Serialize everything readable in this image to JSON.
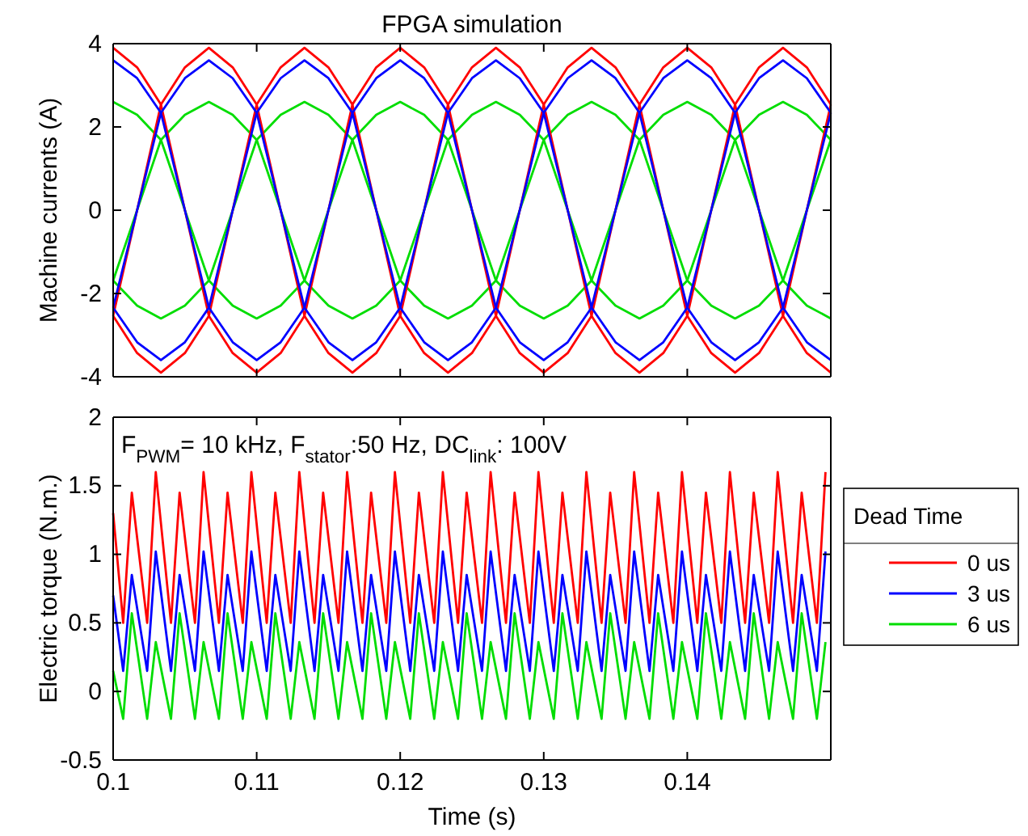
{
  "chart_data": [
    {
      "type": "line",
      "title": "FPGA simulation",
      "ylabel": "Machine currents (A)",
      "xlim": [
        0.1,
        0.15
      ],
      "xticks": [
        0.1,
        0.11,
        0.12,
        0.13,
        0.14
      ],
      "ylim": [
        -4,
        4
      ],
      "yticks": [
        -4,
        -2,
        0,
        2,
        4
      ],
      "tick_labels": "y",
      "x": [
        0.1,
        0.10167,
        0.10333,
        0.105,
        0.10667,
        0.10833,
        0.11,
        0.11167,
        0.11333,
        0.115,
        0.11667,
        0.11833,
        0.12,
        0.12167,
        0.12333,
        0.125,
        0.12667,
        0.12833,
        0.13,
        0.13167,
        0.13333,
        0.135,
        0.13667,
        0.13833,
        0.14,
        0.14167,
        0.14333,
        0.145,
        0.14667,
        0.14833,
        0.15
      ],
      "series": [
        {
          "color": "#00dd00",
          "values": [
            2.6,
            2.29,
            1.69,
            0,
            -1.69,
            -2.29,
            -2.6,
            -2.29,
            -1.69,
            0,
            1.69,
            2.29,
            2.6,
            2.29,
            1.69,
            0,
            -1.69,
            -2.29,
            -2.6,
            -2.29,
            -1.69,
            0,
            1.69,
            2.29,
            2.6,
            2.29,
            1.69,
            0,
            -1.69,
            -2.29,
            -2.6
          ]
        },
        {
          "color": "#00dd00",
          "values": [
            -1.69,
            0,
            1.69,
            2.29,
            2.6,
            2.29,
            1.69,
            0,
            -1.69,
            -2.29,
            -2.6,
            -2.29,
            -1.69,
            0,
            1.69,
            2.29,
            2.6,
            2.29,
            1.69,
            0,
            -1.69,
            -2.29,
            -2.6,
            -2.29,
            -1.69,
            0,
            1.69,
            2.29,
            2.6,
            2.29,
            1.69
          ]
        },
        {
          "color": "#00dd00",
          "values": [
            -1.69,
            -2.29,
            -2.6,
            -2.29,
            -1.69,
            0,
            1.69,
            2.29,
            2.6,
            2.29,
            1.69,
            0,
            -1.69,
            -2.29,
            -2.6,
            -2.29,
            -1.69,
            0,
            1.69,
            2.29,
            2.6,
            2.29,
            1.69,
            0,
            -1.69,
            -2.29,
            -2.6,
            -2.29,
            -1.69,
            0,
            1.69
          ]
        },
        {
          "color": "#ff0000",
          "values": [
            3.9,
            3.43,
            2.54,
            0,
            -2.54,
            -3.43,
            -3.9,
            -3.43,
            -2.54,
            0,
            2.54,
            3.43,
            3.9,
            3.43,
            2.54,
            0,
            -2.54,
            -3.43,
            -3.9,
            -3.43,
            -2.54,
            0,
            2.54,
            3.43,
            3.9,
            3.43,
            2.54,
            0,
            -2.54,
            -3.43,
            -3.9
          ]
        },
        {
          "color": "#ff0000",
          "values": [
            -2.54,
            0,
            2.54,
            3.43,
            3.9,
            3.43,
            2.54,
            0,
            -2.54,
            -3.43,
            -3.9,
            -3.43,
            -2.54,
            0,
            2.54,
            3.43,
            3.9,
            3.43,
            2.54,
            0,
            -2.54,
            -3.43,
            -3.9,
            -3.43,
            -2.54,
            0,
            2.54,
            3.43,
            3.9,
            3.43,
            2.54
          ]
        },
        {
          "color": "#ff0000",
          "values": [
            -2.54,
            -3.43,
            -3.9,
            -3.43,
            -2.54,
            0,
            2.54,
            3.43,
            3.9,
            3.43,
            2.54,
            0,
            -2.54,
            -3.43,
            -3.9,
            -3.43,
            -2.54,
            0,
            2.54,
            3.43,
            3.9,
            3.43,
            2.54,
            0,
            -2.54,
            -3.43,
            -3.9,
            -3.43,
            -2.54,
            0,
            2.54
          ]
        },
        {
          "color": "#0000ff",
          "values": [
            3.6,
            3.17,
            2.34,
            0,
            -2.34,
            -3.17,
            -3.6,
            -3.17,
            -2.34,
            0,
            2.34,
            3.17,
            3.6,
            3.17,
            2.34,
            0,
            -2.34,
            -3.17,
            -3.6,
            -3.17,
            -2.34,
            0,
            2.34,
            3.17,
            3.6,
            3.17,
            2.34,
            0,
            -2.34,
            -3.17,
            -3.6
          ]
        },
        {
          "color": "#0000ff",
          "values": [
            -2.34,
            0,
            2.34,
            3.17,
            3.6,
            3.17,
            2.34,
            0,
            -2.34,
            -3.17,
            -3.6,
            -3.17,
            -2.34,
            0,
            2.34,
            3.17,
            3.6,
            3.17,
            2.34,
            0,
            -2.34,
            -3.17,
            -3.6,
            -3.17,
            -2.34,
            0,
            2.34,
            3.17,
            3.6,
            3.17,
            2.34
          ]
        },
        {
          "color": "#0000ff",
          "values": [
            -2.34,
            -3.17,
            -3.6,
            -3.17,
            -2.34,
            0,
            2.34,
            3.17,
            3.6,
            3.17,
            2.34,
            0,
            -2.34,
            -3.17,
            -3.6,
            -3.17,
            -2.34,
            0,
            2.34,
            3.17,
            3.6,
            3.17,
            2.34,
            0,
            -2.34,
            -3.17,
            -3.6,
            -3.17,
            -2.34,
            0,
            2.34
          ]
        }
      ]
    },
    {
      "type": "line",
      "xlabel": "Time (s)",
      "ylabel": "Electric torque (N.m.)",
      "xlim": [
        0.1,
        0.15
      ],
      "xticks": [
        0.1,
        0.11,
        0.12,
        0.13,
        0.14
      ],
      "ylim": [
        -0.5,
        2
      ],
      "yticks": [
        -0.5,
        0,
        0.5,
        1,
        1.5,
        2
      ],
      "legend": "right",
      "legend_title": "Dead Time",
      "annotations": [
        "F$_{PWM}$= 10 kHz, F$_{stator}$:50 Hz, DC$_{link}$: 100V"
      ],
      "x": [
        0.1,
        0.1007,
        0.1013,
        0.10237,
        0.10297,
        0.10403,
        0.10463,
        0.1057,
        0.1063,
        0.10737,
        0.10797,
        0.10903,
        0.10963,
        0.1107,
        0.1113,
        0.11237,
        0.11297,
        0.11403,
        0.11463,
        0.1157,
        0.1163,
        0.11737,
        0.11797,
        0.11903,
        0.11963,
        0.1207,
        0.1213,
        0.12237,
        0.12297,
        0.12403,
        0.12463,
        0.1257,
        0.1263,
        0.12737,
        0.12797,
        0.12903,
        0.12963,
        0.1307,
        0.1313,
        0.13237,
        0.13297,
        0.13403,
        0.13463,
        0.1357,
        0.1363,
        0.13737,
        0.13797,
        0.13903,
        0.13963,
        0.1407,
        0.1413,
        0.14237,
        0.14297,
        0.14403,
        0.14463,
        0.1457,
        0.1463,
        0.14737,
        0.14797,
        0.14903,
        0.14963
      ],
      "series": [
        {
          "name": "0 us",
          "color": "#ff0000",
          "values": [
            1.3,
            0.5,
            1.45,
            0.5,
            1.6,
            0.5,
            1.45,
            0.5,
            1.6,
            0.5,
            1.45,
            0.5,
            1.6,
            0.5,
            1.45,
            0.5,
            1.6,
            0.5,
            1.45,
            0.5,
            1.6,
            0.5,
            1.45,
            0.5,
            1.6,
            0.5,
            1.45,
            0.5,
            1.6,
            0.5,
            1.45,
            0.5,
            1.6,
            0.5,
            1.45,
            0.5,
            1.6,
            0.5,
            1.45,
            0.5,
            1.6,
            0.5,
            1.45,
            0.5,
            1.6,
            0.5,
            1.45,
            0.5,
            1.6,
            0.5,
            1.45,
            0.5,
            1.6,
            0.5,
            1.45,
            0.5,
            1.6,
            0.5,
            1.45,
            0.5,
            1.6
          ]
        },
        {
          "name": "3 us",
          "color": "#0000ff",
          "values": [
            0.7,
            0.15,
            0.85,
            0.15,
            1.02,
            0.15,
            0.85,
            0.15,
            1.02,
            0.15,
            0.85,
            0.15,
            1.02,
            0.15,
            0.85,
            0.15,
            1.02,
            0.15,
            0.85,
            0.15,
            1.02,
            0.15,
            0.85,
            0.15,
            1.02,
            0.15,
            0.85,
            0.15,
            1.02,
            0.15,
            0.85,
            0.15,
            1.02,
            0.15,
            0.85,
            0.15,
            1.02,
            0.15,
            0.85,
            0.15,
            1.02,
            0.15,
            0.85,
            0.15,
            1.02,
            0.15,
            0.85,
            0.15,
            1.02,
            0.15,
            0.85,
            0.15,
            1.02,
            0.15,
            0.85,
            0.15,
            1.02,
            0.15,
            0.85,
            0.15,
            1.02
          ]
        },
        {
          "name": "6 us",
          "color": "#00dd00",
          "values": [
            0.15,
            -0.2,
            0.57,
            -0.2,
            0.36,
            -0.2,
            0.57,
            -0.2,
            0.36,
            -0.2,
            0.57,
            -0.2,
            0.36,
            -0.2,
            0.57,
            -0.2,
            0.36,
            -0.2,
            0.57,
            -0.2,
            0.36,
            -0.2,
            0.57,
            -0.2,
            0.36,
            -0.2,
            0.57,
            -0.2,
            0.36,
            -0.2,
            0.57,
            -0.2,
            0.36,
            -0.2,
            0.57,
            -0.2,
            0.36,
            -0.2,
            0.57,
            -0.2,
            0.36,
            -0.2,
            0.57,
            -0.2,
            0.36,
            -0.2,
            0.57,
            -0.2,
            0.36,
            -0.2,
            0.57,
            -0.2,
            0.36,
            -0.2,
            0.57,
            -0.2,
            0.36,
            -0.2,
            0.57,
            -0.2,
            0.36
          ]
        }
      ]
    }
  ]
}
